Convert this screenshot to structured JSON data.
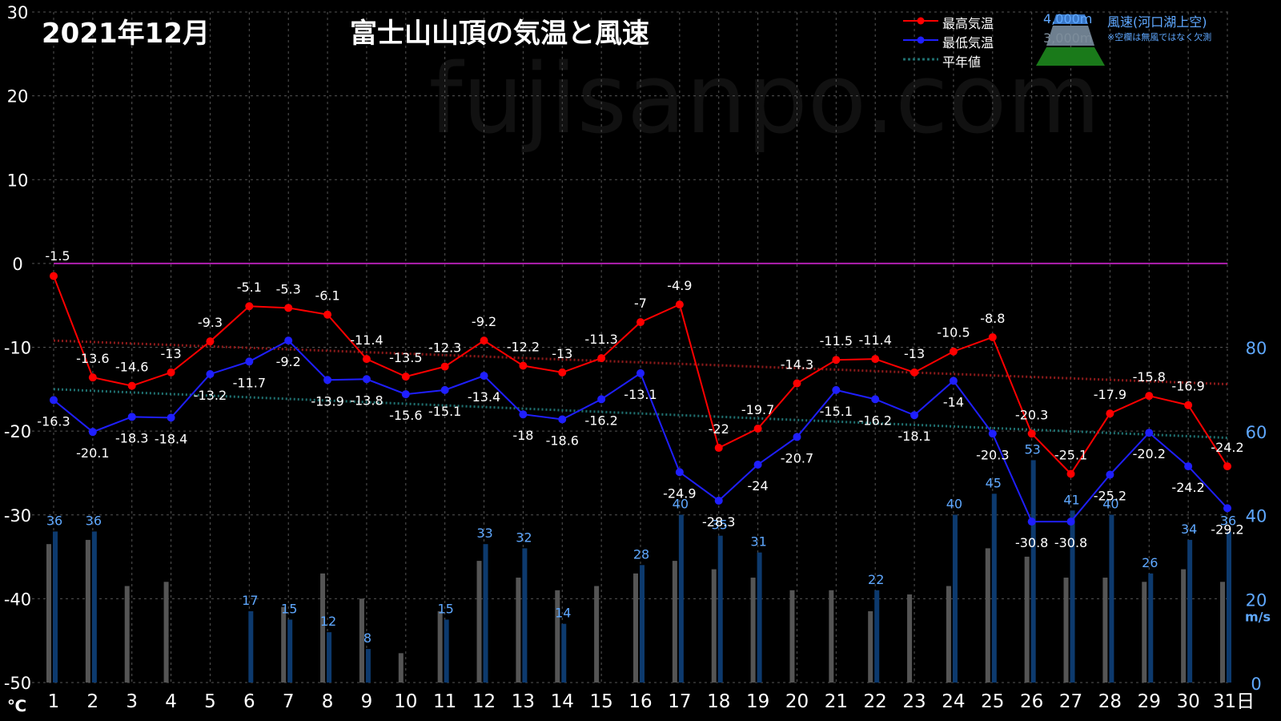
{
  "header": {
    "month": "2021年12月",
    "title": "富士山山頂の気温と風速"
  },
  "legend": {
    "max_temp": "最高気温",
    "min_temp": "最低気温",
    "normal": "平年値",
    "alt_4000": "4,000m",
    "alt_3000": "3,000m",
    "wind_label": "風速(河口湖上空)",
    "note": "※空欄は無風ではなく欠測"
  },
  "watermark": "fujisanpo.com",
  "colors": {
    "max": "#ff0000",
    "min": "#1f1fff",
    "normal_max": "#8b1a1a",
    "normal_min": "#1f6f6f",
    "zero_line": "#b01fb0",
    "bar_3000": "#555555",
    "bar_4000": "#0d3a6e",
    "wind_text": "#5fa8ff",
    "axis_right": "#5fa8ff"
  },
  "chart_data": {
    "type": "line",
    "days": [
      "1",
      "2",
      "3",
      "4",
      "5",
      "6",
      "7",
      "8",
      "9",
      "10",
      "11",
      "12",
      "13",
      "14",
      "15",
      "16",
      "17",
      "18",
      "19",
      "20",
      "21",
      "22",
      "23",
      "24",
      "25",
      "26",
      "27",
      "28",
      "29",
      "30",
      "31日"
    ],
    "temp_axis": {
      "min": -50,
      "max": 30,
      "ticks": [
        "30",
        "20",
        "10",
        "0",
        "-10",
        "-20",
        "-30",
        "-40",
        "-50"
      ],
      "unit": "℃"
    },
    "wind_axis": {
      "min": 0,
      "max": 80,
      "ticks": [
        "80",
        "60",
        "40",
        "20",
        "0"
      ],
      "unit": "m/s"
    },
    "max_temp": [
      -1.5,
      -13.6,
      -14.6,
      -13,
      -9.3,
      -5.1,
      -5.3,
      -6.1,
      -11.4,
      -13.5,
      -12.3,
      -9.2,
      -12.2,
      -13,
      -11.3,
      -7,
      -4.9,
      -22,
      -19.7,
      -14.3,
      -11.5,
      -11.4,
      -13,
      -10.5,
      -8.8,
      -20.3,
      -25.1,
      -17.9,
      -15.8,
      -16.9,
      -24.2
    ],
    "max_labels": [
      "-1.5",
      "-13.6",
      "-14.6",
      "-13",
      "-9.3",
      "-5.1",
      "-5.3",
      "-6.1",
      "-11.4",
      "-13.5",
      "-12.3",
      "-9.2",
      "-12.2",
      "-13",
      "-11.3",
      "-7",
      "-4.9",
      "-22",
      "-19.7",
      "-14.3",
      "-11.5",
      "-11.4",
      "-13",
      "-10.5",
      "-8.8",
      "-20.3",
      "-25.1",
      "-17.9",
      "-15.8",
      "-16.9",
      "-24.2"
    ],
    "min_temp": [
      -16.3,
      -20.1,
      -18.3,
      -18.4,
      -13.2,
      -11.7,
      -9.2,
      -13.9,
      -13.8,
      -15.6,
      -15.1,
      -13.4,
      -18,
      -18.6,
      -16.2,
      -13.1,
      -24.9,
      -28.3,
      -24,
      -20.7,
      -15.1,
      -16.2,
      -18.1,
      -14,
      -20.3,
      -30.8,
      -30.8,
      -25.2,
      -20.2,
      -24.2,
      -29.2
    ],
    "min_labels": [
      "-16.3",
      "-20.1",
      "-18.3",
      "-18.4",
      "-13.2",
      "-11.7",
      "-9.2",
      "-13.9",
      "-13.8",
      "-15.6",
      "-15.1",
      "-13.4",
      "-18",
      "-18.6",
      "-16.2",
      "-13.1",
      "-24.9",
      "-28.3",
      "-24",
      "-20.7",
      "-15.1",
      "-16.2",
      "-18.1",
      "-14",
      "-20.3",
      "-30.8",
      "-30.8",
      "-25.2",
      "-20.2",
      "-24.2",
      "-29.2"
    ],
    "normal_max": [
      -9.2,
      -14.4
    ],
    "normal_min": [
      -15.0,
      -20.8
    ],
    "wind_4000": [
      36,
      36,
      null,
      null,
      null,
      17,
      15,
      12,
      8,
      null,
      15,
      33,
      32,
      14,
      null,
      28,
      40,
      35,
      31,
      null,
      null,
      22,
      null,
      40,
      45,
      53,
      41,
      40,
      26,
      34,
      36
    ],
    "wind_4000_labels": [
      "36",
      "36",
      "",
      "",
      "",
      "17",
      "15",
      "12",
      "8",
      "",
      "15",
      "33",
      "32",
      "14",
      "",
      "28",
      "40",
      "35",
      "31",
      "",
      "",
      "22",
      "",
      "40",
      "45",
      "53",
      "41",
      "40",
      "26",
      "34",
      "36"
    ],
    "wind_3000": [
      33,
      34,
      23,
      24,
      null,
      null,
      18,
      26,
      20,
      7,
      17,
      29,
      25,
      22,
      23,
      26,
      29,
      27,
      25,
      22,
      22,
      17,
      21,
      23,
      32,
      30,
      25,
      25,
      24,
      27,
      24
    ]
  }
}
